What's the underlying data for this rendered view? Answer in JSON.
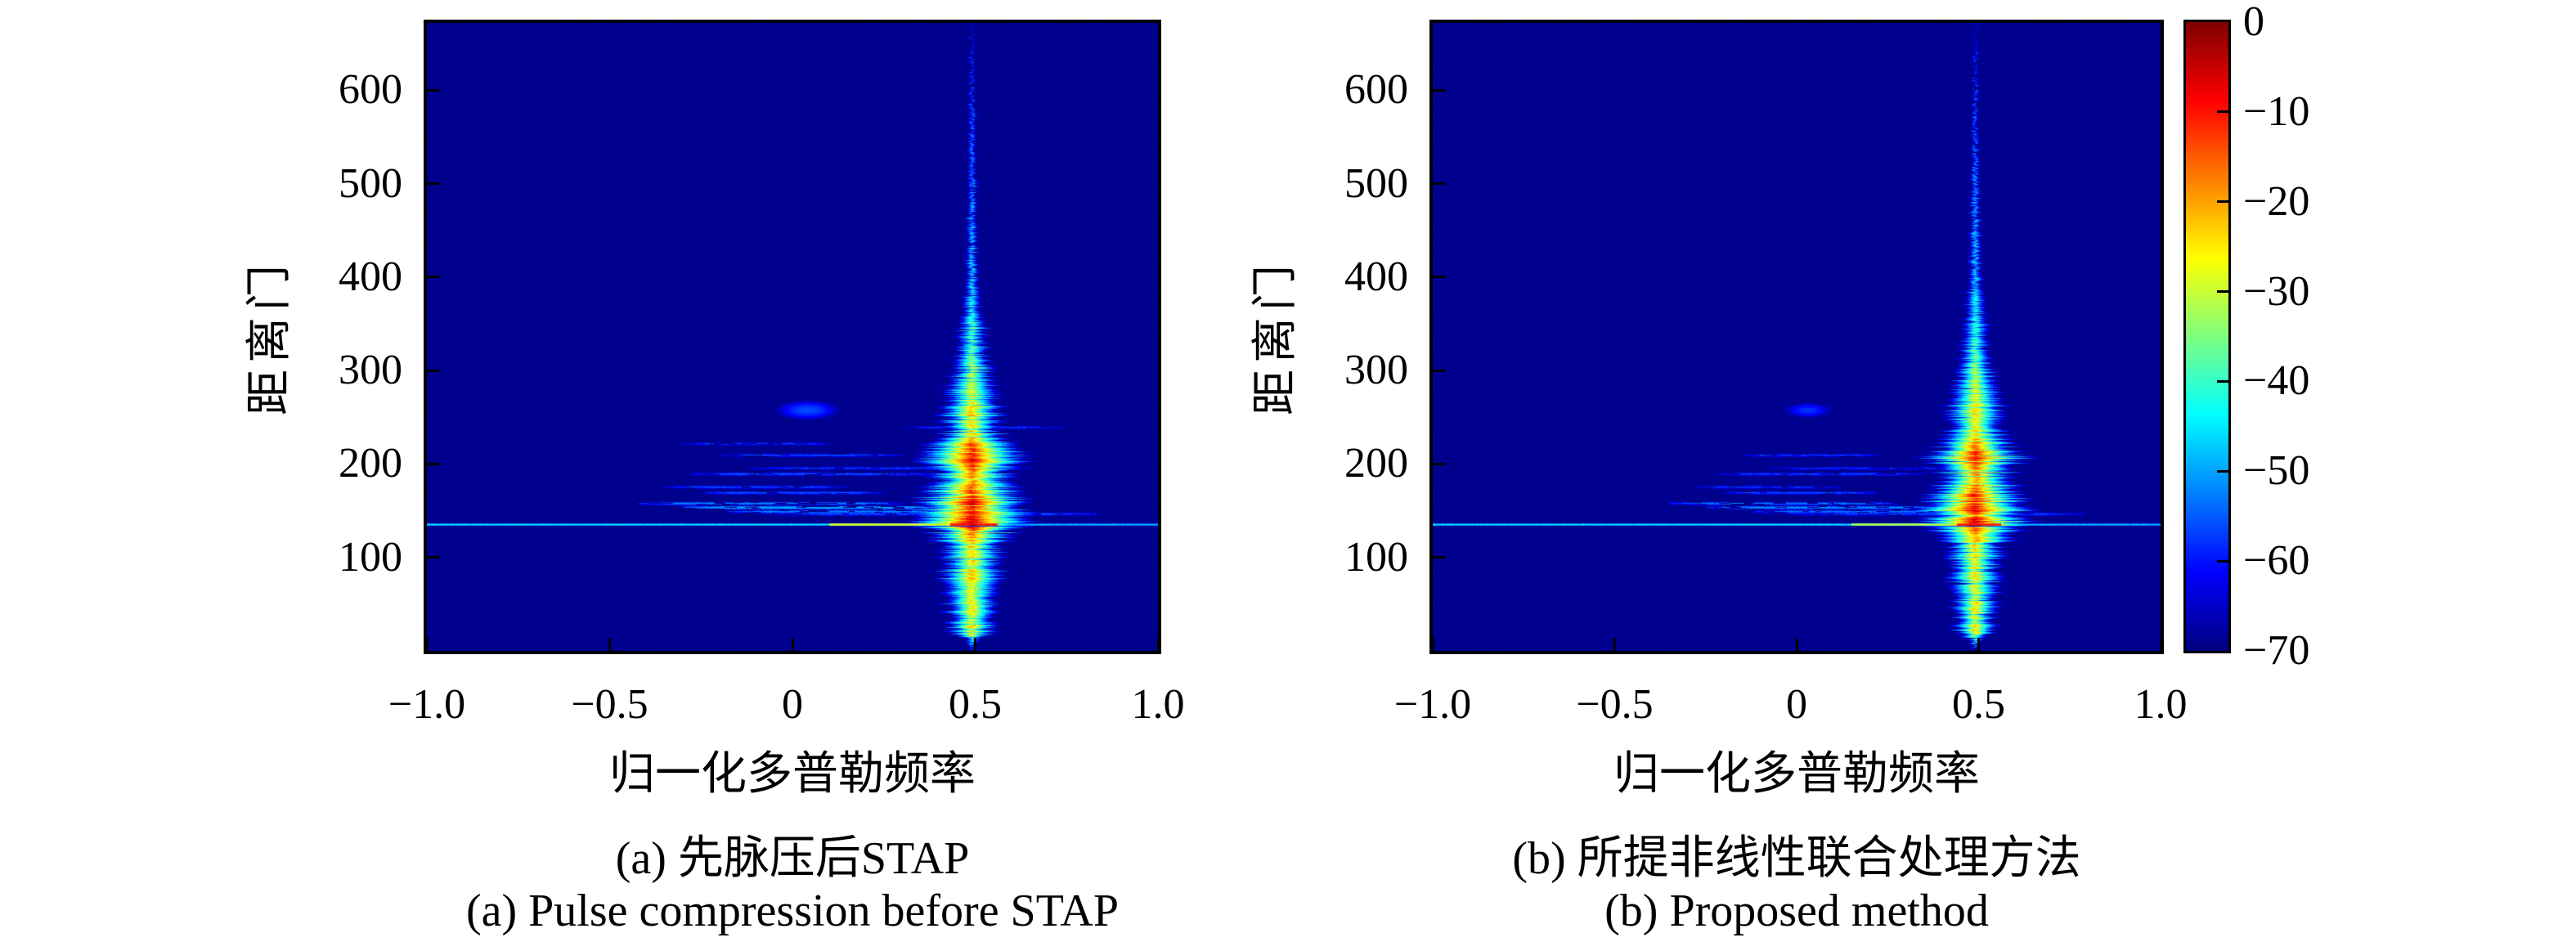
{
  "figure_type": "dual range-Doppler spectrum heatmap figure with colorbar",
  "panels": [
    {
      "caption_zh": "(a) 先脉压后STAP",
      "caption_en": "(a) Pulse compression before STAP",
      "xlabel": "归一化多普勒频率",
      "ylabel": "距离门",
      "x_ticks": [
        {
          "label": "−1.0",
          "value": -1.0
        },
        {
          "label": "−0.5",
          "value": -0.5
        },
        {
          "label": "0",
          "value": 0
        },
        {
          "label": "0.5",
          "value": 0.5
        },
        {
          "label": "1.0",
          "value": 1.0
        }
      ],
      "y_ticks": [
        {
          "label": "600",
          "value": 600
        },
        {
          "label": "500",
          "value": 500
        },
        {
          "label": "400",
          "value": 400
        },
        {
          "label": "300",
          "value": 300
        },
        {
          "label": "200",
          "value": 200
        },
        {
          "label": "100",
          "value": 100
        }
      ]
    },
    {
      "caption_zh": "(b) 所提非线性联合处理方法",
      "caption_en": "(b) Proposed method",
      "xlabel": "归一化多普勒频率",
      "ylabel": "距离门",
      "x_ticks": [
        {
          "label": "−1.0",
          "value": -1.0
        },
        {
          "label": "−0.5",
          "value": -0.5
        },
        {
          "label": "0",
          "value": 0
        },
        {
          "label": "0.5",
          "value": 0.5
        },
        {
          "label": "1.0",
          "value": 1.0
        }
      ],
      "y_ticks": [
        {
          "label": "600",
          "value": 600
        },
        {
          "label": "500",
          "value": 500
        },
        {
          "label": "400",
          "value": 400
        },
        {
          "label": "300",
          "value": 300
        },
        {
          "label": "200",
          "value": 200
        },
        {
          "label": "100",
          "value": 100
        }
      ]
    }
  ],
  "colorbar": {
    "colormap": "jet",
    "min_db": -70,
    "max_db": 0,
    "ticks": [
      {
        "label": "0",
        "value": 0
      },
      {
        "label": "−10",
        "value": -10
      },
      {
        "label": "−20",
        "value": -20
      },
      {
        "label": "−30",
        "value": -30
      },
      {
        "label": "−40",
        "value": -40
      },
      {
        "label": "−50",
        "value": -50
      },
      {
        "label": "−60",
        "value": -60
      },
      {
        "label": "−70",
        "value": -70
      }
    ]
  },
  "colors": {
    "background_navy": "#00008f",
    "peak_dark_red": "#7f0000",
    "clutter_line_cyan": "#00e0ff",
    "frame_black": "#000000",
    "page_white": "#ffffff"
  },
  "chart_data": [
    {
      "id": "a",
      "type": "heatmap",
      "title_zh": "(a) 先脉压后STAP",
      "title_en": "(a) Pulse compression before STAP",
      "xlabel": "归一化多普勒频率",
      "ylabel": "距离门",
      "xlim": [
        -1,
        1
      ],
      "ylim": [
        0,
        672
      ],
      "value_range_db": [
        -70,
        0
      ],
      "colormap": "jet",
      "background_db": -69,
      "seed": 1337,
      "streak": {
        "doppler": 0.49,
        "profile": [
          [
            672,
            -64,
            3
          ],
          [
            640,
            -58,
            4
          ],
          [
            600,
            -56,
            4
          ],
          [
            560,
            -54,
            5
          ],
          [
            520,
            -52,
            5
          ],
          [
            480,
            -50,
            6
          ],
          [
            440,
            -48,
            6
          ],
          [
            400,
            -46,
            7
          ],
          [
            380,
            -44,
            8
          ],
          [
            360,
            -42,
            9
          ],
          [
            345,
            -38,
            10
          ],
          [
            330,
            -36,
            11
          ],
          [
            315,
            -34,
            12
          ],
          [
            300,
            -30,
            13
          ],
          [
            285,
            -28,
            14
          ],
          [
            270,
            -26,
            15
          ],
          [
            255,
            -22,
            16
          ],
          [
            240,
            -24,
            15
          ],
          [
            228,
            -20,
            17
          ],
          [
            215,
            -10,
            20
          ],
          [
            205,
            -8,
            21
          ],
          [
            196,
            -14,
            19
          ],
          [
            188,
            -18,
            18
          ],
          [
            180,
            -16,
            19
          ],
          [
            170,
            -12,
            20
          ],
          [
            162,
            -7,
            22
          ],
          [
            152,
            -6,
            22
          ],
          [
            145,
            -10,
            21
          ],
          [
            138,
            -4,
            23
          ],
          [
            132,
            -8,
            21
          ],
          [
            124,
            -18,
            18
          ],
          [
            110,
            -22,
            16
          ],
          [
            95,
            -24,
            15
          ],
          [
            80,
            -22,
            16
          ],
          [
            65,
            -26,
            15
          ],
          [
            50,
            -24,
            14
          ],
          [
            35,
            -26,
            13
          ],
          [
            22,
            -22,
            13
          ],
          [
            12,
            -40,
            7
          ],
          [
            4,
            -55,
            4
          ],
          [
            0,
            -66,
            3
          ]
        ]
      },
      "clutter_line": {
        "range": 136,
        "db": -44,
        "hot_segments": [
          {
            "x0": 0.1,
            "x1": 0.45,
            "db": -27
          },
          {
            "x0": 0.43,
            "x1": 0.56,
            "db": -8
          }
        ]
      },
      "sidelobes": [
        [
          158,
          -0.42,
          0.3,
          -52
        ],
        [
          154,
          -0.3,
          0.42,
          -49
        ],
        [
          150,
          -0.18,
          0.6,
          -52
        ],
        [
          147,
          -0.05,
          0.85,
          -55
        ],
        [
          170,
          -0.25,
          0.25,
          -55
        ],
        [
          176,
          -0.35,
          0.15,
          -56
        ],
        [
          190,
          -0.28,
          0.4,
          -55
        ],
        [
          196,
          -0.12,
          0.65,
          -57
        ],
        [
          210,
          -0.2,
          0.3,
          -56
        ],
        [
          222,
          -0.3,
          0.1,
          -57
        ],
        [
          240,
          0.3,
          0.75,
          -58
        ]
      ],
      "blob": {
        "doppler": 0.04,
        "range": 258,
        "db": -56,
        "sx": 0.05,
        "sy": 6
      }
    },
    {
      "id": "b",
      "type": "heatmap",
      "title_zh": "(b) 所提非线性联合处理方法",
      "title_en": "(b) Proposed method",
      "xlabel": "归一化多普勒频率",
      "ylabel": "距离门",
      "xlim": [
        -1,
        1
      ],
      "ylim": [
        0,
        672
      ],
      "value_range_db": [
        -70,
        0
      ],
      "colormap": "jet",
      "background_db": -69,
      "seed": 90210,
      "streak": {
        "doppler": 0.49,
        "profile": [
          [
            672,
            -64,
            3
          ],
          [
            640,
            -58,
            4
          ],
          [
            600,
            -56,
            4
          ],
          [
            560,
            -54,
            5
          ],
          [
            520,
            -52,
            5
          ],
          [
            480,
            -50,
            6
          ],
          [
            440,
            -48,
            6
          ],
          [
            400,
            -46,
            7
          ],
          [
            380,
            -44,
            8
          ],
          [
            360,
            -42,
            9
          ],
          [
            345,
            -39,
            10
          ],
          [
            330,
            -37,
            11
          ],
          [
            315,
            -35,
            11
          ],
          [
            300,
            -31,
            12
          ],
          [
            285,
            -29,
            13
          ],
          [
            270,
            -27,
            14
          ],
          [
            255,
            -23,
            15
          ],
          [
            240,
            -25,
            14
          ],
          [
            228,
            -21,
            16
          ],
          [
            215,
            -11,
            19
          ],
          [
            205,
            -9,
            20
          ],
          [
            196,
            -15,
            18
          ],
          [
            188,
            -19,
            17
          ],
          [
            180,
            -17,
            18
          ],
          [
            170,
            -13,
            19
          ],
          [
            162,
            -8,
            21
          ],
          [
            152,
            -7,
            21
          ],
          [
            145,
            -11,
            20
          ],
          [
            138,
            -5,
            22
          ],
          [
            132,
            -9,
            20
          ],
          [
            124,
            -19,
            17
          ],
          [
            110,
            -23,
            15
          ],
          [
            95,
            -25,
            14
          ],
          [
            80,
            -23,
            15
          ],
          [
            65,
            -27,
            14
          ],
          [
            50,
            -25,
            13
          ],
          [
            35,
            -27,
            12
          ],
          [
            22,
            -23,
            12
          ],
          [
            12,
            -41,
            7
          ],
          [
            4,
            -56,
            4
          ],
          [
            0,
            -66,
            3
          ]
        ]
      },
      "clutter_line": {
        "range": 136,
        "db": -44,
        "hot_segments": [
          {
            "x0": 0.15,
            "x1": 0.42,
            "db": -30
          },
          {
            "x0": 0.44,
            "x1": 0.56,
            "db": -9
          }
        ]
      },
      "sidelobes": [
        [
          158,
          -0.35,
          0.28,
          -53
        ],
        [
          154,
          -0.25,
          0.4,
          -51
        ],
        [
          150,
          -0.12,
          0.55,
          -53
        ],
        [
          147,
          -0.02,
          0.8,
          -56
        ],
        [
          170,
          -0.2,
          0.22,
          -56
        ],
        [
          176,
          -0.28,
          0.12,
          -57
        ],
        [
          190,
          -0.22,
          0.35,
          -56
        ],
        [
          196,
          -0.08,
          0.55,
          -58
        ],
        [
          210,
          -0.15,
          0.22,
          -57
        ]
      ],
      "blob": {
        "doppler": 0.03,
        "range": 258,
        "db": -58,
        "sx": 0.04,
        "sy": 5
      }
    }
  ]
}
